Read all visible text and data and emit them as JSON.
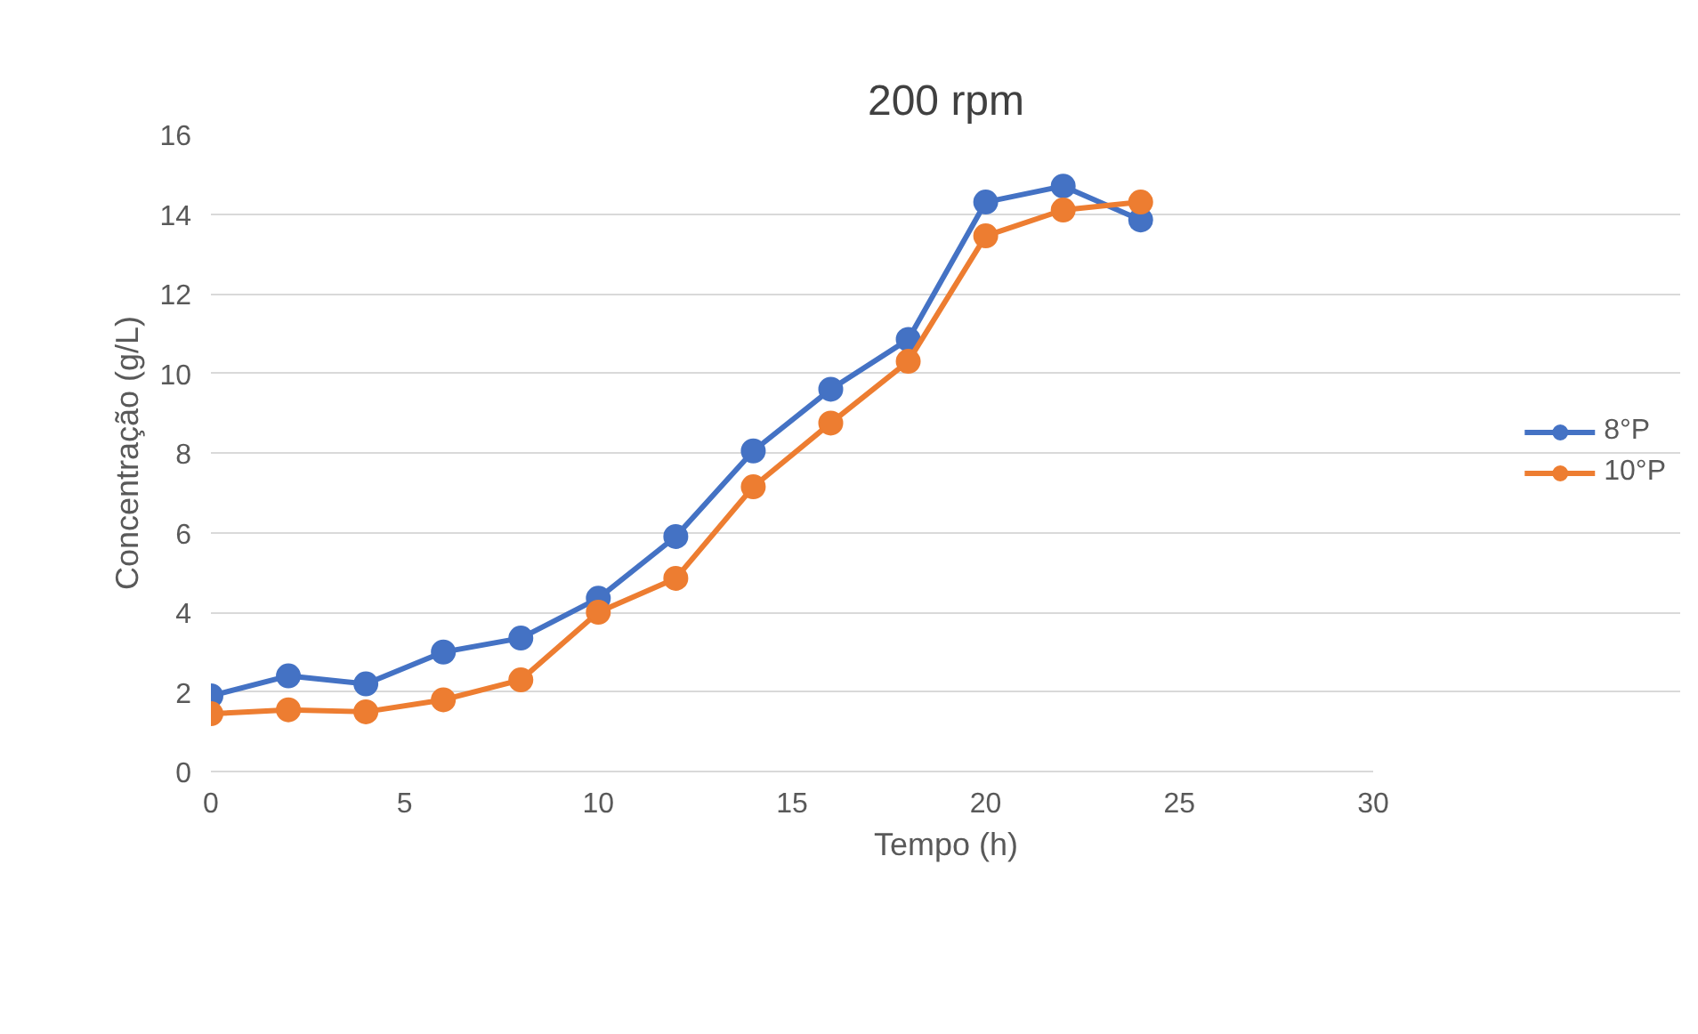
{
  "chart_data": {
    "type": "line",
    "title": "200 rpm",
    "xlabel": "Tempo (h)",
    "ylabel": "Concentração (g/L)",
    "x": [
      0,
      2,
      4,
      6,
      8,
      10,
      12,
      14,
      16,
      18,
      20,
      22,
      24
    ],
    "series": [
      {
        "name": "8°P",
        "color": "#4472c4",
        "values": [
          1.9,
          2.4,
          2.2,
          3.0,
          3.35,
          4.35,
          5.9,
          8.05,
          9.6,
          10.85,
          14.3,
          14.7,
          13.85
        ]
      },
      {
        "name": "10°P",
        "color": "#ed7d31",
        "values": [
          1.45,
          1.55,
          1.5,
          1.8,
          2.3,
          4.0,
          4.85,
          7.15,
          8.75,
          10.3,
          13.45,
          14.1,
          14.3
        ]
      }
    ],
    "xlim": [
      0,
      30
    ],
    "xticks": [
      0,
      5,
      10,
      15,
      20,
      25,
      30
    ],
    "ylim": [
      0,
      16
    ],
    "yticks": [
      0,
      2,
      4,
      6,
      8,
      10,
      12,
      14,
      16
    ],
    "grid": "y",
    "legend": "right",
    "marker": "circle",
    "line_style": "solid"
  }
}
